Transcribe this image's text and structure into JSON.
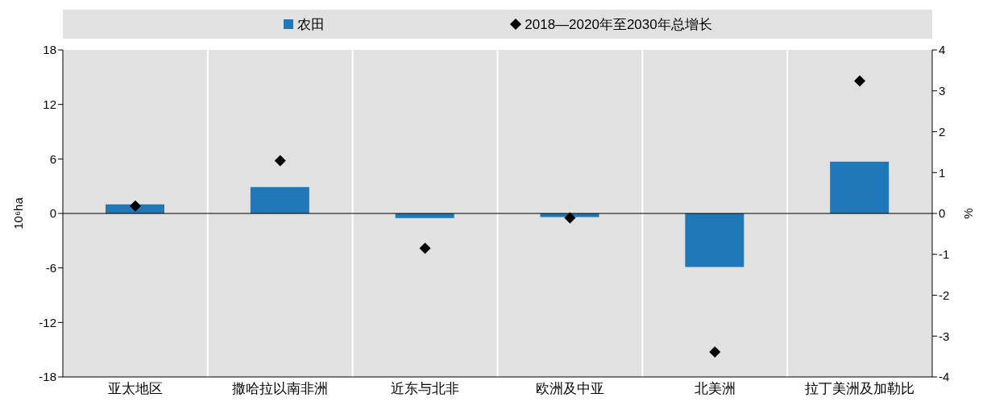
{
  "chart_data": {
    "type": "bar",
    "categories": [
      "亚太地区",
      "撒哈拉以南非洲",
      "近东与北非",
      "欧洲及中亚",
      "北美洲",
      "拉丁美洲及加勒比"
    ],
    "ylabel": "10⁶ha",
    "y2label": "%",
    "ylim": [
      -18,
      18
    ],
    "yticks": [
      -18,
      -12,
      -6,
      0,
      6,
      12,
      18
    ],
    "y2lim": [
      -4,
      4
    ],
    "y2ticks": [
      -4,
      -3,
      -2,
      -1,
      0,
      1,
      2,
      3,
      4
    ],
    "series": [
      {
        "name": "农田",
        "color": "#1f78b8",
        "values": [
          1.0,
          2.9,
          -0.5,
          -0.4,
          -5.9,
          5.7
        ]
      },
      {
        "name": "2018—2020年至2030年总增长",
        "type": "scatter",
        "axis": "y2",
        "color": "#000000",
        "values": [
          0.18,
          1.29,
          -0.85,
          -0.11,
          -3.39,
          3.24
        ]
      }
    ],
    "marker": "diamond",
    "grid": "x",
    "legend": "top"
  }
}
